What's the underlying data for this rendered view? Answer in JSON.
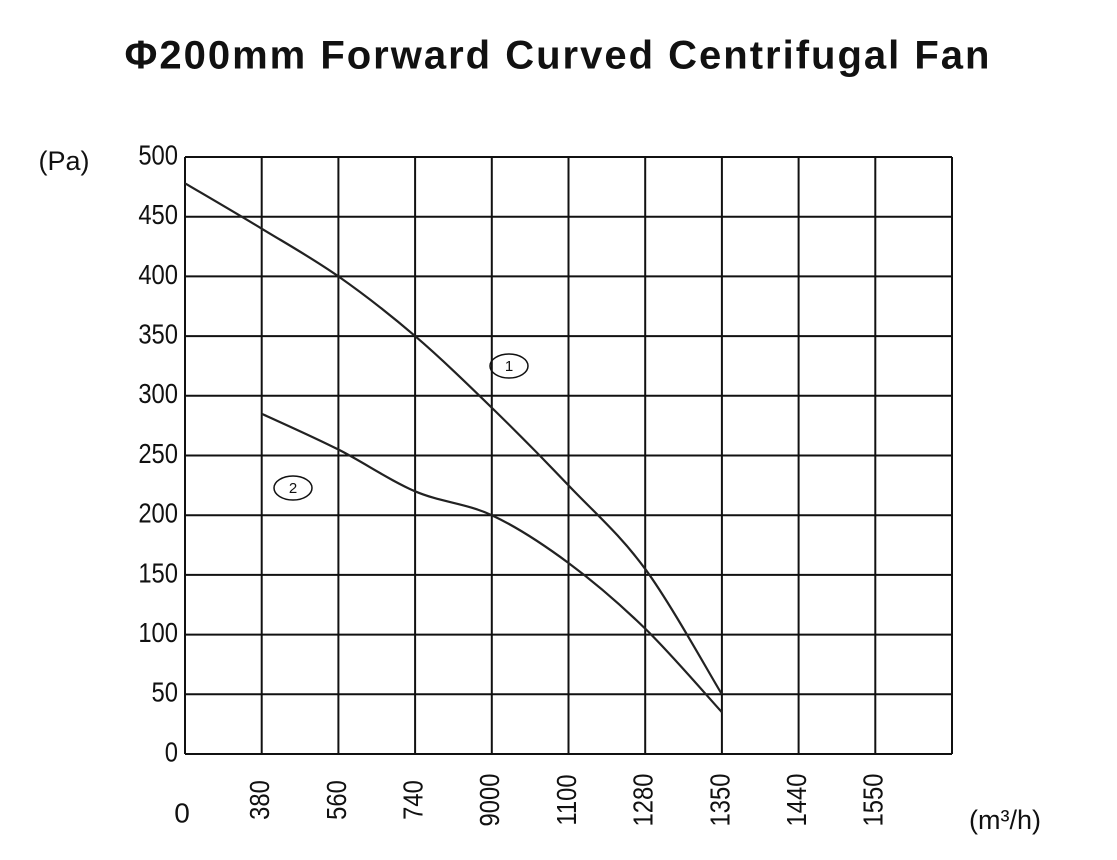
{
  "chart_data": {
    "type": "line",
    "title": "Φ200mm Forward Curved Centrifugal Fan",
    "y_label": "(Pa)",
    "x_label": "(m³/h)",
    "categories": [
      "0",
      "380",
      "560",
      "740",
      "9000",
      "1100",
      "1280",
      "1350",
      "1440",
      "1550",
      null
    ],
    "series": [
      {
        "name": "1",
        "color": "#222222",
        "values": [
          478,
          440,
          400,
          350,
          290,
          225,
          155,
          50,
          null,
          null,
          null
        ]
      },
      {
        "name": "2",
        "color": "#222222",
        "values": [
          null,
          285,
          255,
          220,
          200,
          160,
          105,
          35,
          null,
          null,
          null
        ]
      }
    ],
    "ylim": [
      0,
      500
    ],
    "yticks": [
      0,
      50,
      100,
      150,
      200,
      250,
      300,
      350,
      400,
      450,
      500
    ],
    "grid": true
  }
}
